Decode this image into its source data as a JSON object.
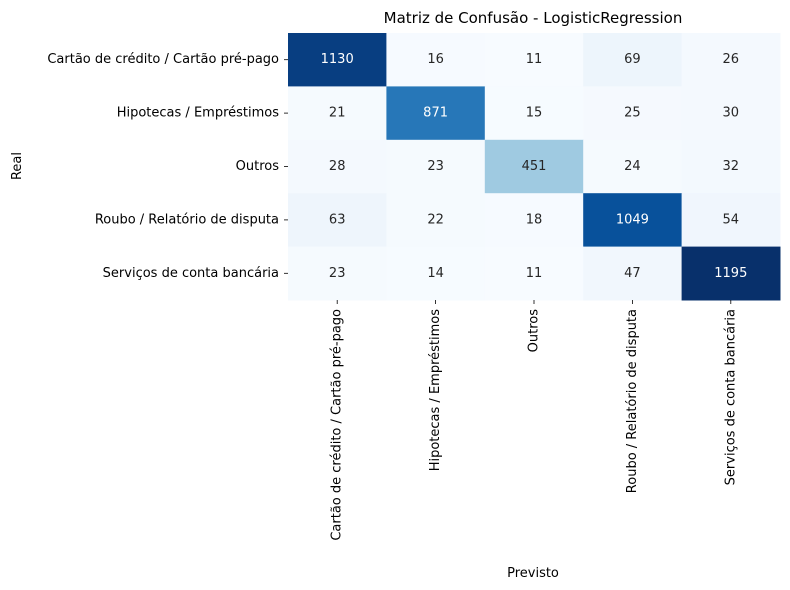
{
  "chart_data": {
    "type": "heatmap",
    "title": "Matriz de Confusão - LogisticRegression",
    "xlabel": "Previsto",
    "ylabel": "Real",
    "x_categories": [
      "Cartão de crédito / Cartão pré-pago",
      "Hipotecas / Empréstimos",
      "Outros",
      "Roubo / Relatório de disputa",
      "Serviços de conta bancária"
    ],
    "y_categories": [
      "Cartão de crédito / Cartão pré-pago",
      "Hipotecas / Empréstimos",
      "Outros",
      "Roubo / Relatório de disputa",
      "Serviços de conta bancária"
    ],
    "values": [
      [
        1130,
        16,
        11,
        69,
        26
      ],
      [
        21,
        871,
        15,
        25,
        30
      ],
      [
        28,
        23,
        451,
        24,
        32
      ],
      [
        63,
        22,
        18,
        1049,
        54
      ],
      [
        23,
        14,
        11,
        47,
        1195
      ]
    ],
    "colormap": "Blues",
    "color_low": "#f7fbff",
    "color_high": "#08306b",
    "colorbar": false
  }
}
